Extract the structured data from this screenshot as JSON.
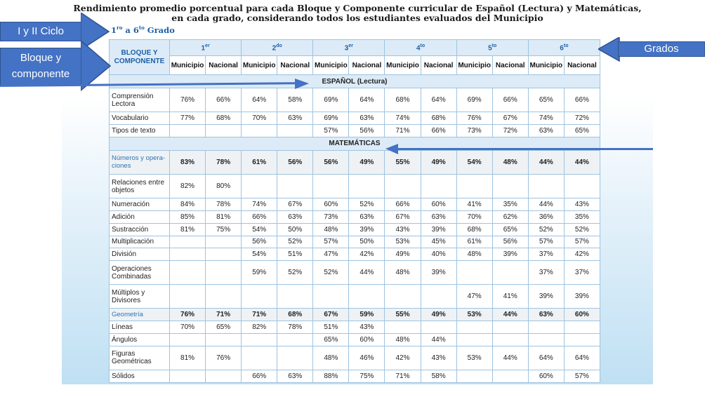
{
  "title_lines": [
    "Rendimiento promedio porcentual para cada Bloque y Componente curricular de Español (Lectura) y Matemáticas,",
    "en cada grado, considerando todos los estudiantes evaluados del Municipio"
  ],
  "grade_range": {
    "from_num": "1",
    "from_sup": "ro",
    "middle": " a 6",
    "to_sup": "to",
    "suffix": " Grado"
  },
  "callouts": {
    "ciclo": "I y II Ciclo",
    "bloque": "Bloque y componente",
    "grados": "Grados"
  },
  "table": {
    "header_block": "BLOQUE Y COMPONENTE",
    "grades": [
      {
        "num": "1",
        "sup": "er"
      },
      {
        "num": "2",
        "sup": "do"
      },
      {
        "num": "3",
        "sup": "er"
      },
      {
        "num": "4",
        "sup": "to"
      },
      {
        "num": "5",
        "sup": "to"
      },
      {
        "num": "6",
        "sup": "to"
      }
    ],
    "sub_municipio": "Municipio",
    "sub_nacional": "Nacional",
    "sections": [
      {
        "title": "ESPAÑOL (Lectura)",
        "rows": [
          {
            "label": "Comprensión Lectora",
            "main": false,
            "values": [
              "76%",
              "66%",
              "64%",
              "58%",
              "69%",
              "64%",
              "68%",
              "64%",
              "69%",
              "66%",
              "65%",
              "66%"
            ]
          },
          {
            "label": "Vocabulario",
            "main": false,
            "values": [
              "77%",
              "68%",
              "70%",
              "63%",
              "69%",
              "63%",
              "74%",
              "68%",
              "76%",
              "67%",
              "74%",
              "72%"
            ]
          },
          {
            "label": "Tipos de texto",
            "main": false,
            "values": [
              "",
              "",
              "",
              "",
              "57%",
              "56%",
              "71%",
              "66%",
              "73%",
              "72%",
              "63%",
              "65%"
            ]
          }
        ]
      },
      {
        "title": "MATEMÁTICAS",
        "rows": [
          {
            "label": "Números y opera-ciones",
            "main": true,
            "values": [
              "83%",
              "78%",
              "61%",
              "56%",
              "56%",
              "49%",
              "55%",
              "49%",
              "54%",
              "48%",
              "44%",
              "44%"
            ]
          },
          {
            "label": "Relaciones entre objetos",
            "main": false,
            "values": [
              "82%",
              "80%",
              "",
              "",
              "",
              "",
              "",
              "",
              "",
              "",
              "",
              ""
            ]
          },
          {
            "label": "Numeración",
            "main": false,
            "values": [
              "84%",
              "78%",
              "74%",
              "67%",
              "60%",
              "52%",
              "66%",
              "60%",
              "41%",
              "35%",
              "44%",
              "43%"
            ]
          },
          {
            "label": "Adición",
            "main": false,
            "values": [
              "85%",
              "81%",
              "66%",
              "63%",
              "73%",
              "63%",
              "67%",
              "63%",
              "70%",
              "62%",
              "36%",
              "35%"
            ]
          },
          {
            "label": "Sustracción",
            "main": false,
            "values": [
              "81%",
              "75%",
              "54%",
              "50%",
              "48%",
              "39%",
              "43%",
              "39%",
              "68%",
              "65%",
              "52%",
              "52%"
            ]
          },
          {
            "label": "Multiplicación",
            "main": false,
            "values": [
              "",
              "",
              "56%",
              "52%",
              "57%",
              "50%",
              "53%",
              "45%",
              "61%",
              "56%",
              "57%",
              "57%"
            ]
          },
          {
            "label": "División",
            "main": false,
            "values": [
              "",
              "",
              "54%",
              "51%",
              "47%",
              "42%",
              "49%",
              "40%",
              "48%",
              "39%",
              "37%",
              "42%"
            ]
          },
          {
            "label": "Operaciones Combinadas",
            "main": false,
            "values": [
              "",
              "",
              "59%",
              "52%",
              "52%",
              "44%",
              "48%",
              "39%",
              "",
              "",
              "37%",
              "37%"
            ]
          },
          {
            "label": "Múltiplos y Divisores",
            "main": false,
            "values": [
              "",
              "",
              "",
              "",
              "",
              "",
              "",
              "",
              "47%",
              "41%",
              "39%",
              "39%"
            ]
          },
          {
            "label": "Geometría",
            "main": true,
            "values": [
              "76%",
              "71%",
              "71%",
              "68%",
              "67%",
              "59%",
              "55%",
              "49%",
              "53%",
              "44%",
              "63%",
              "60%"
            ]
          },
          {
            "label": "Líneas",
            "main": false,
            "values": [
              "70%",
              "65%",
              "82%",
              "78%",
              "51%",
              "43%",
              "",
              "",
              "",
              "",
              "",
              ""
            ]
          },
          {
            "label": "Ángulos",
            "main": false,
            "values": [
              "",
              "",
              "",
              "",
              "65%",
              "60%",
              "48%",
              "44%",
              "",
              "",
              "",
              ""
            ]
          },
          {
            "label": "Figuras Geométricas",
            "main": false,
            "values": [
              "81%",
              "76%",
              "",
              "",
              "48%",
              "46%",
              "42%",
              "43%",
              "53%",
              "44%",
              "64%",
              "64%"
            ]
          },
          {
            "label": "Sólidos",
            "main": false,
            "values": [
              "",
              "",
              "66%",
              "63%",
              "88%",
              "75%",
              "71%",
              "58%",
              "",
              "",
              "60%",
              "57%"
            ]
          }
        ]
      }
    ]
  },
  "colors": {
    "accent": "#4472c4",
    "header_text": "#1f5fa6",
    "header_bg": "#dcebf7",
    "link_label": "#2e74b5"
  }
}
